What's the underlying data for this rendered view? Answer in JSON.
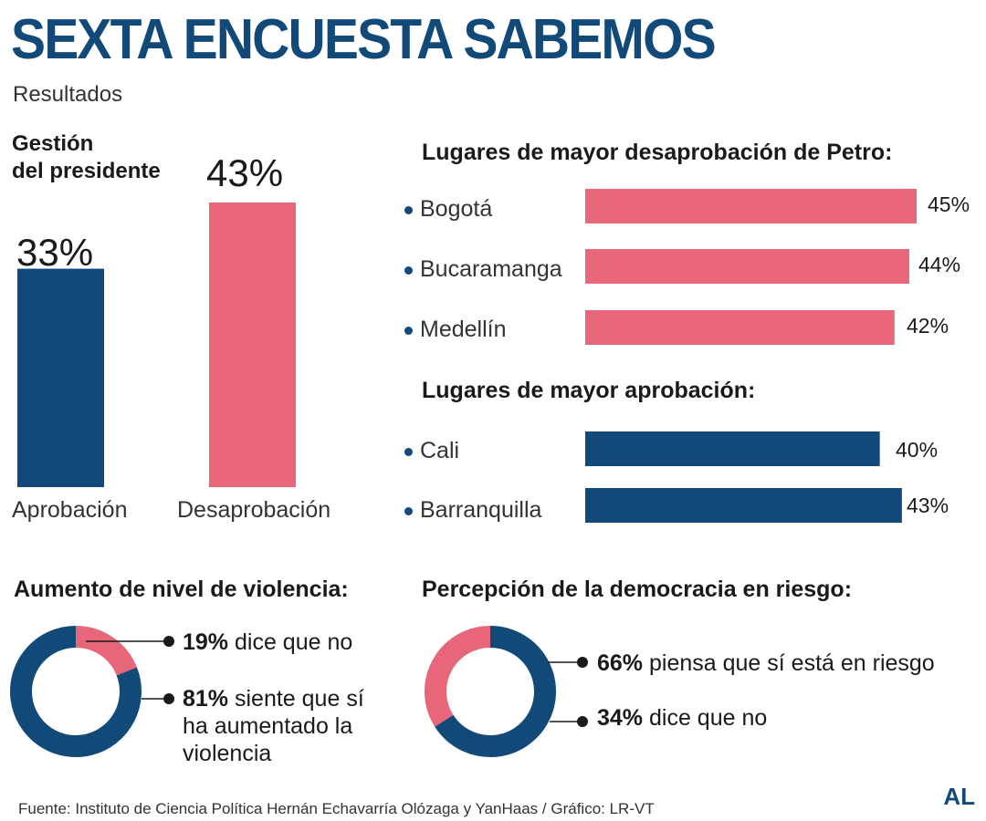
{
  "header": {
    "title": "SEXTA ENCUESTA SABEMOS",
    "subtitle": "Resultados"
  },
  "colors": {
    "navy": "#114a78",
    "pink": "#e8667a"
  },
  "chart_data": [
    {
      "type": "bar",
      "title_line1": "Gestión",
      "title_line2": "del presidente",
      "categories": [
        "Aprobación",
        "Desaprobación"
      ],
      "values": [
        33,
        43
      ],
      "value_labels": [
        "33%",
        "43%"
      ],
      "ylim": [
        0,
        50
      ]
    },
    {
      "type": "bar",
      "orientation": "horizontal",
      "title": "Lugares de mayor desaprobación de Petro:",
      "categories": [
        "Bogotá",
        "Bucaramanga",
        "Medellín"
      ],
      "values": [
        45,
        44,
        42
      ],
      "value_labels": [
        "45%",
        "44%",
        "42%"
      ]
    },
    {
      "type": "bar",
      "orientation": "horizontal",
      "title": "Lugares de mayor aprobación:",
      "categories": [
        "Cali",
        "Barranquilla"
      ],
      "values": [
        40,
        43
      ],
      "value_labels": [
        "40%",
        "43%"
      ]
    },
    {
      "type": "pie",
      "style": "donut",
      "title": "Aumento de nivel de violencia:",
      "slices": [
        {
          "value": 19,
          "pct_label": "19%",
          "text": "dice que no",
          "color": "#e8667a"
        },
        {
          "value": 81,
          "pct_label": "81%",
          "text_line1": "siente que sí",
          "text_line2": "ha aumentado la",
          "text_line3": "violencia",
          "color": "#114a78"
        }
      ]
    },
    {
      "type": "pie",
      "style": "donut",
      "title": "Percepción de la democracia en riesgo:",
      "slices": [
        {
          "value": 66,
          "pct_label": "66%",
          "text": "piensa que sí está en riesgo",
          "color": "#114a78"
        },
        {
          "value": 34,
          "pct_label": "34%",
          "text": "dice que no",
          "color": "#e8667a"
        }
      ]
    }
  ],
  "footer": {
    "source": "Fuente: Instituto de Ciencia Política Hernán Echavarría Olózaga y YanHaas / Gráfico: LR-VT",
    "logo": "AL"
  }
}
